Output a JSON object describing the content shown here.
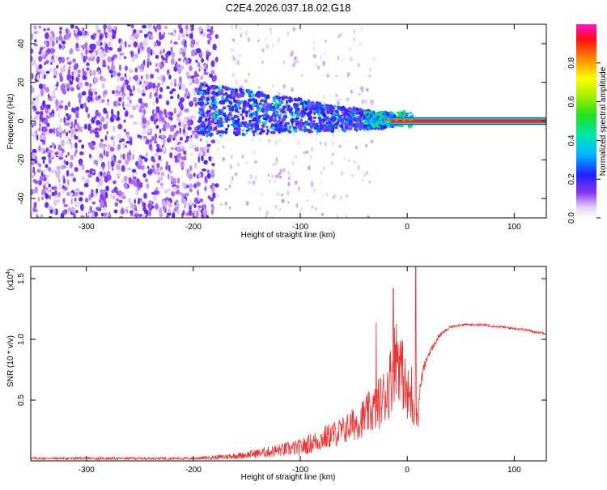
{
  "title": "C2E4.2026.037.18.02.G18",
  "colors": {
    "snr_line": "#f03030"
  },
  "chart_data": [
    {
      "type": "heatmap",
      "title": "C2E4.2026.037.18.02.G18",
      "xlabel": "Height of straight line (km)",
      "ylabel": "Frequency (Hz)",
      "xlim": [
        -352,
        130
      ],
      "ylim": [
        -50,
        50
      ],
      "xticks": [
        -300,
        -200,
        -100,
        0,
        100
      ],
      "xtick_labels": [
        "-300",
        "-200",
        "-100",
        "0",
        "100"
      ],
      "yticks": [
        -40,
        -20,
        0,
        20,
        40
      ],
      "ytick_labels": [
        "-40",
        "-20",
        "0",
        "20",
        "40"
      ],
      "colorbar": {
        "label": "Normalized spectral amplitude",
        "range": [
          0,
          1
        ],
        "ticks": [
          0.0,
          0.2,
          0.4,
          0.6,
          0.8
        ],
        "tick_labels": [
          "0.0",
          "0.2",
          "0.4",
          "0.6",
          "0.8"
        ]
      },
      "regions": [
        {
          "name": "noise",
          "x_range": [
            -352,
            -178
          ],
          "freq_range": [
            -50,
            50
          ],
          "amplitude": 0.15
        },
        {
          "name": "sparse",
          "x_range": [
            -178,
            -30
          ],
          "freq_range": [
            -50,
            50
          ],
          "amplitude": 0.05
        },
        {
          "name": "signal-spread",
          "x_range": [
            -195,
            -20
          ],
          "center_freq_start": 6,
          "center_freq_end": 0,
          "halfwidth_start": 14,
          "halfwidth_end": 4,
          "amplitude": 0.3
        },
        {
          "name": "signal-converging",
          "x_range": [
            -40,
            5
          ],
          "center_freq": 1,
          "halfwidth": 4,
          "amplitude": 0.4
        },
        {
          "name": "tone",
          "x_range": [
            5,
            130
          ],
          "center_freq": 0,
          "halfwidth": 1.5,
          "amplitude": 0.95
        }
      ]
    },
    {
      "type": "line",
      "xlabel": "Height of straight line (km)",
      "ylabel": "SNR (10 * v/v)",
      "scale_label": "(x10",
      "scale_exponent": "4",
      "xlim": [
        -352,
        130
      ],
      "ylim": [
        0,
        1.6
      ],
      "xticks": [
        -300,
        -200,
        -100,
        0,
        100
      ],
      "xtick_labels": [
        "-300",
        "-200",
        "-100",
        "0",
        "100"
      ],
      "yticks": [
        0.5,
        1.0,
        1.5
      ],
      "ytick_labels": [
        "0.5",
        "1.0",
        "1.5"
      ],
      "series": [
        {
          "name": "SNR",
          "x": [
            -352,
            -300,
            -250,
            -200,
            -175,
            -150,
            -125,
            -100,
            -80,
            -60,
            -45,
            -30,
            -20,
            -15,
            -10,
            -5,
            0,
            5,
            8,
            10,
            12,
            15,
            20,
            30,
            40,
            50,
            60,
            70,
            80,
            90,
            100,
            110,
            120,
            130
          ],
          "y": [
            0.02,
            0.02,
            0.02,
            0.02,
            0.03,
            0.05,
            0.08,
            0.11,
            0.18,
            0.25,
            0.33,
            0.43,
            0.55,
            0.68,
            0.9,
            0.75,
            0.5,
            0.55,
            0.45,
            0.35,
            0.6,
            0.75,
            0.88,
            1.03,
            1.1,
            1.12,
            1.12,
            1.12,
            1.11,
            1.1,
            1.09,
            1.08,
            1.06,
            1.05
          ],
          "noise_amp": [
            0.01,
            0.01,
            0.01,
            0.01,
            0.02,
            0.03,
            0.05,
            0.07,
            0.1,
            0.12,
            0.15,
            0.2,
            0.25,
            0.3,
            0.35,
            0.3,
            0.25,
            0.3,
            0.2,
            0.1,
            0.06,
            0.04,
            0.03,
            0.02,
            0.01,
            0.01,
            0.01,
            0.01,
            0.01,
            0.01,
            0.01,
            0.01,
            0.01,
            0.01
          ]
        }
      ],
      "spikes": [
        {
          "x": -29,
          "y": 1.14
        },
        {
          "x": -13,
          "y": 1.42
        },
        {
          "x": 8,
          "y": 1.6
        }
      ]
    }
  ]
}
